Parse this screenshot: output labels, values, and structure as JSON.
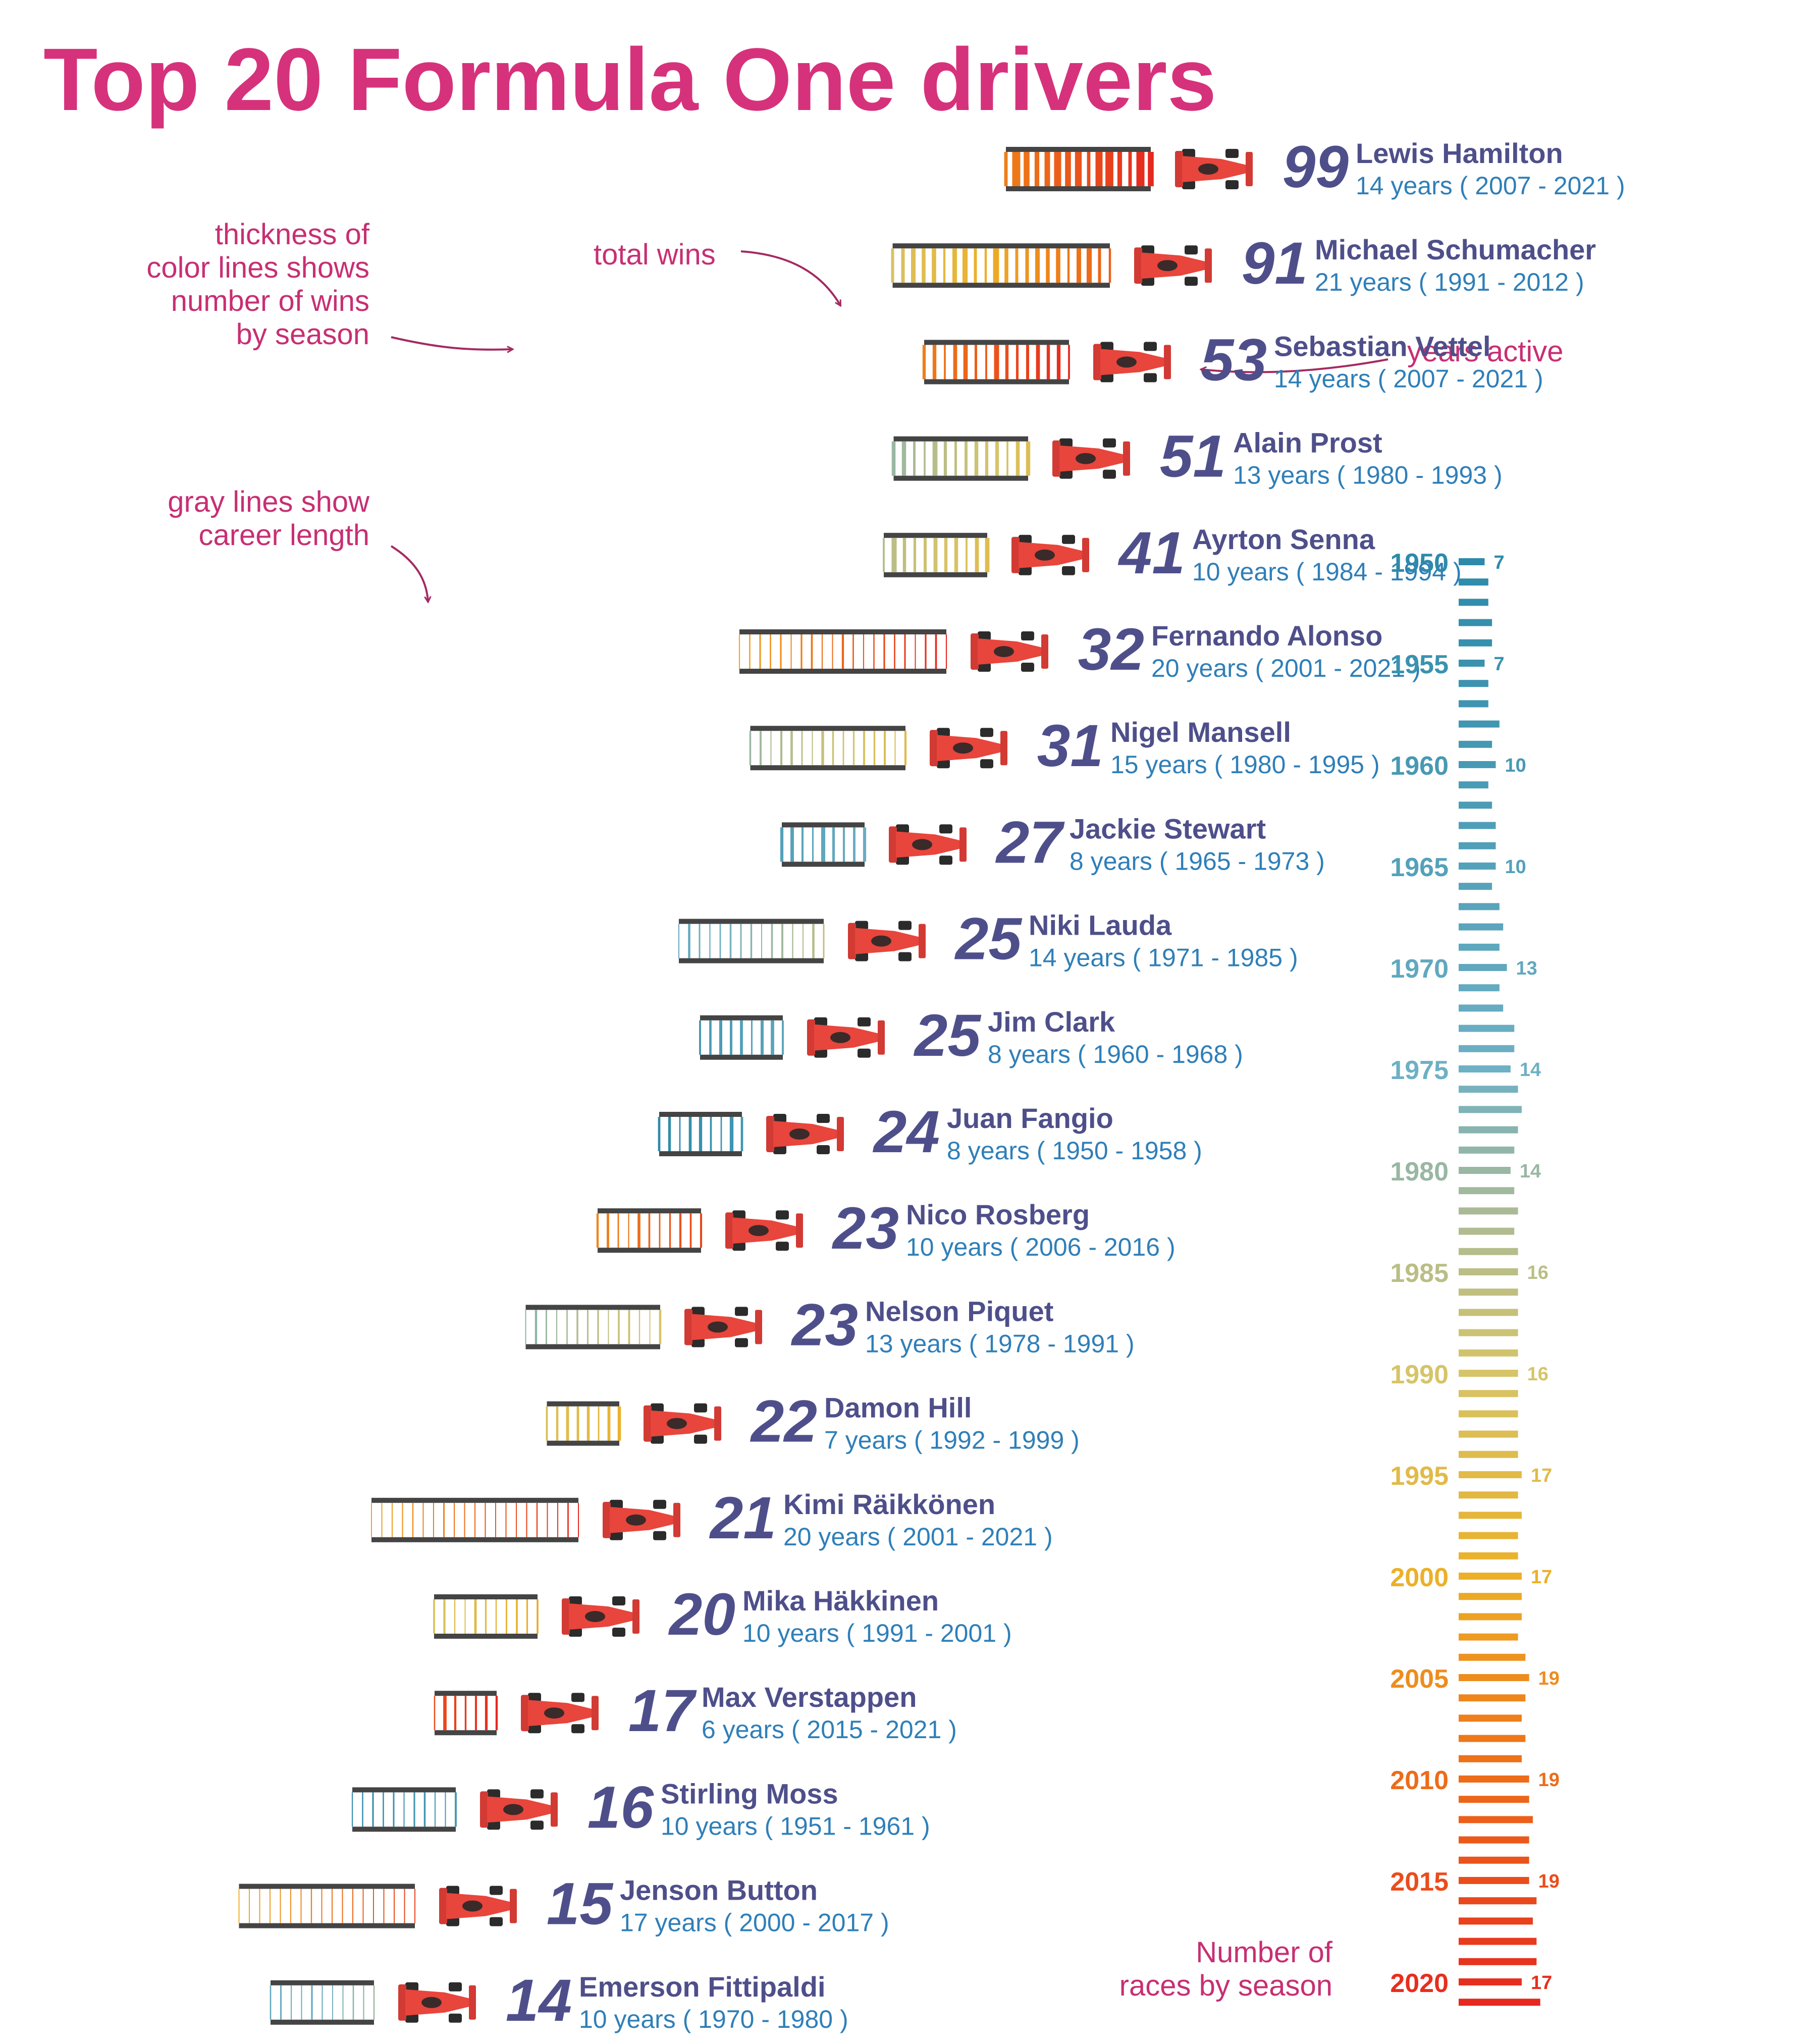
{
  "title": "Top 20 Formula One drivers",
  "annotations": {
    "thickness": [
      "thickness of",
      "color lines shows",
      "number of wins",
      "by season"
    ],
    "total_wins": "total wins",
    "years_active": "years active",
    "gray_lines": [
      "gray lines show",
      "career length"
    ],
    "races_by_season": [
      "Number of",
      "races by season"
    ]
  },
  "colors": {
    "title": "#d6327c",
    "annotation": "#c72f73",
    "driver_name": "#4e4f8a",
    "years_text": "#2f7fb8",
    "wins_number": "#4e4f8a",
    "track_gray": "#444444",
    "car_red": "#e8453c"
  },
  "chart_data": {
    "type": "bar",
    "drivers": [
      {
        "name": "Lewis Hamilton",
        "wins": "99",
        "years": "14 years",
        "range": "( 2007 - 2021 )",
        "start": 2007,
        "end": 2021
      },
      {
        "name": "Michael Schumacher",
        "wins": "91",
        "years": "21 years",
        "range": "( 1991 - 2012 )",
        "start": 1991,
        "end": 2012
      },
      {
        "name": "Sebastian Vettel",
        "wins": "53",
        "years": "14 years",
        "range": "( 2007 - 2021 )",
        "start": 2007,
        "end": 2021
      },
      {
        "name": "Alain Prost",
        "wins": "51",
        "years": "13 years",
        "range": "( 1980 - 1993 )",
        "start": 1980,
        "end": 1993
      },
      {
        "name": "Ayrton Senna",
        "wins": "41",
        "years": "10 years",
        "range": "( 1984 - 1994 )",
        "start": 1984,
        "end": 1994
      },
      {
        "name": "Fernando Alonso",
        "wins": "32",
        "years": "20 years",
        "range": "( 2001 - 2021 )",
        "start": 2001,
        "end": 2021
      },
      {
        "name": "Nigel Mansell",
        "wins": "31",
        "years": "15 years",
        "range": "( 1980 - 1995 )",
        "start": 1980,
        "end": 1995
      },
      {
        "name": "Jackie Stewart",
        "wins": "27",
        "years": "8 years",
        "range": "( 1965 - 1973 )",
        "start": 1965,
        "end": 1973
      },
      {
        "name": "Niki Lauda",
        "wins": "25",
        "years": "14 years",
        "range": "( 1971 - 1985 )",
        "start": 1971,
        "end": 1985
      },
      {
        "name": "Jim Clark",
        "wins": "25",
        "years": "8 years",
        "range": "( 1960 - 1968 )",
        "start": 1960,
        "end": 1968
      },
      {
        "name": "Juan Fangio",
        "wins": "24",
        "years": "8 years",
        "range": "( 1950 - 1958 )",
        "start": 1950,
        "end": 1958
      },
      {
        "name": "Nico Rosberg",
        "wins": "23",
        "years": "10 years",
        "range": "( 2006 - 2016 )",
        "start": 2006,
        "end": 2016
      },
      {
        "name": "Nelson Piquet",
        "wins": "23",
        "years": "13 years",
        "range": "( 1978 - 1991 )",
        "start": 1978,
        "end": 1991
      },
      {
        "name": "Damon Hill",
        "wins": "22",
        "years": "7 years",
        "range": "( 1992 - 1999 )",
        "start": 1992,
        "end": 1999
      },
      {
        "name": "Kimi Räikkönen",
        "wins": "21",
        "years": "20 years",
        "range": "( 2001 - 2021 )",
        "start": 2001,
        "end": 2021
      },
      {
        "name": "Mika Häkkinen",
        "wins": "20",
        "years": "10 years",
        "range": "( 1991 - 2001 )",
        "start": 1991,
        "end": 2001
      },
      {
        "name": "Max Verstappen",
        "wins": "17",
        "years": "6 years",
        "range": "( 2015 - 2021 )",
        "start": 2015,
        "end": 2021
      },
      {
        "name": "Stirling Moss",
        "wins": "16",
        "years": "10 years",
        "range": "( 1951 - 1961 )",
        "start": 1951,
        "end": 1961
      },
      {
        "name": "Jenson Button",
        "wins": "15",
        "years": "17 years",
        "range": "( 2000 - 2017 )",
        "start": 2000,
        "end": 2017
      },
      {
        "name": "Emerson Fittipaldi",
        "wins": "14",
        "years": "10 years",
        "range": "( 1970 - 1980 )",
        "start": 1970,
        "end": 1980
      }
    ],
    "season_races": {
      "title": "Number of races by season",
      "years": [
        1950,
        1951,
        1952,
        1953,
        1954,
        1955,
        1956,
        1957,
        1958,
        1959,
        1960,
        1961,
        1962,
        1963,
        1964,
        1965,
        1966,
        1967,
        1968,
        1969,
        1970,
        1971,
        1972,
        1973,
        1974,
        1975,
        1976,
        1977,
        1978,
        1979,
        1980,
        1981,
        1982,
        1983,
        1984,
        1985,
        1986,
        1987,
        1988,
        1989,
        1990,
        1991,
        1992,
        1993,
        1994,
        1995,
        1996,
        1997,
        1998,
        1999,
        2000,
        2001,
        2002,
        2003,
        2004,
        2005,
        2006,
        2007,
        2008,
        2009,
        2010,
        2011,
        2012,
        2013,
        2014,
        2015,
        2016,
        2017,
        2018,
        2019,
        2020,
        2021
      ],
      "races": [
        7,
        8,
        8,
        9,
        9,
        7,
        8,
        8,
        11,
        9,
        10,
        8,
        9,
        10,
        10,
        10,
        9,
        11,
        12,
        11,
        13,
        11,
        12,
        15,
        15,
        14,
        16,
        17,
        16,
        15,
        14,
        15,
        16,
        15,
        16,
        16,
        16,
        16,
        16,
        16,
        16,
        16,
        16,
        16,
        16,
        17,
        16,
        17,
        16,
        16,
        17,
        17,
        17,
        16,
        18,
        19,
        18,
        17,
        18,
        17,
        19,
        19,
        20,
        19,
        19,
        19,
        21,
        20,
        21,
        21,
        17,
        22
      ],
      "year_labels": [
        "1950",
        "1955",
        "1960",
        "1965",
        "1970",
        "1975",
        "1980",
        "1985",
        "1990",
        "1995",
        "2000",
        "2005",
        "2010",
        "2015",
        "2020"
      ],
      "value_labels": [
        "7",
        "7",
        "10",
        "10",
        "13",
        "14",
        "14",
        "16",
        "16",
        "17",
        "17",
        "19",
        "19",
        "19",
        "17"
      ]
    }
  }
}
